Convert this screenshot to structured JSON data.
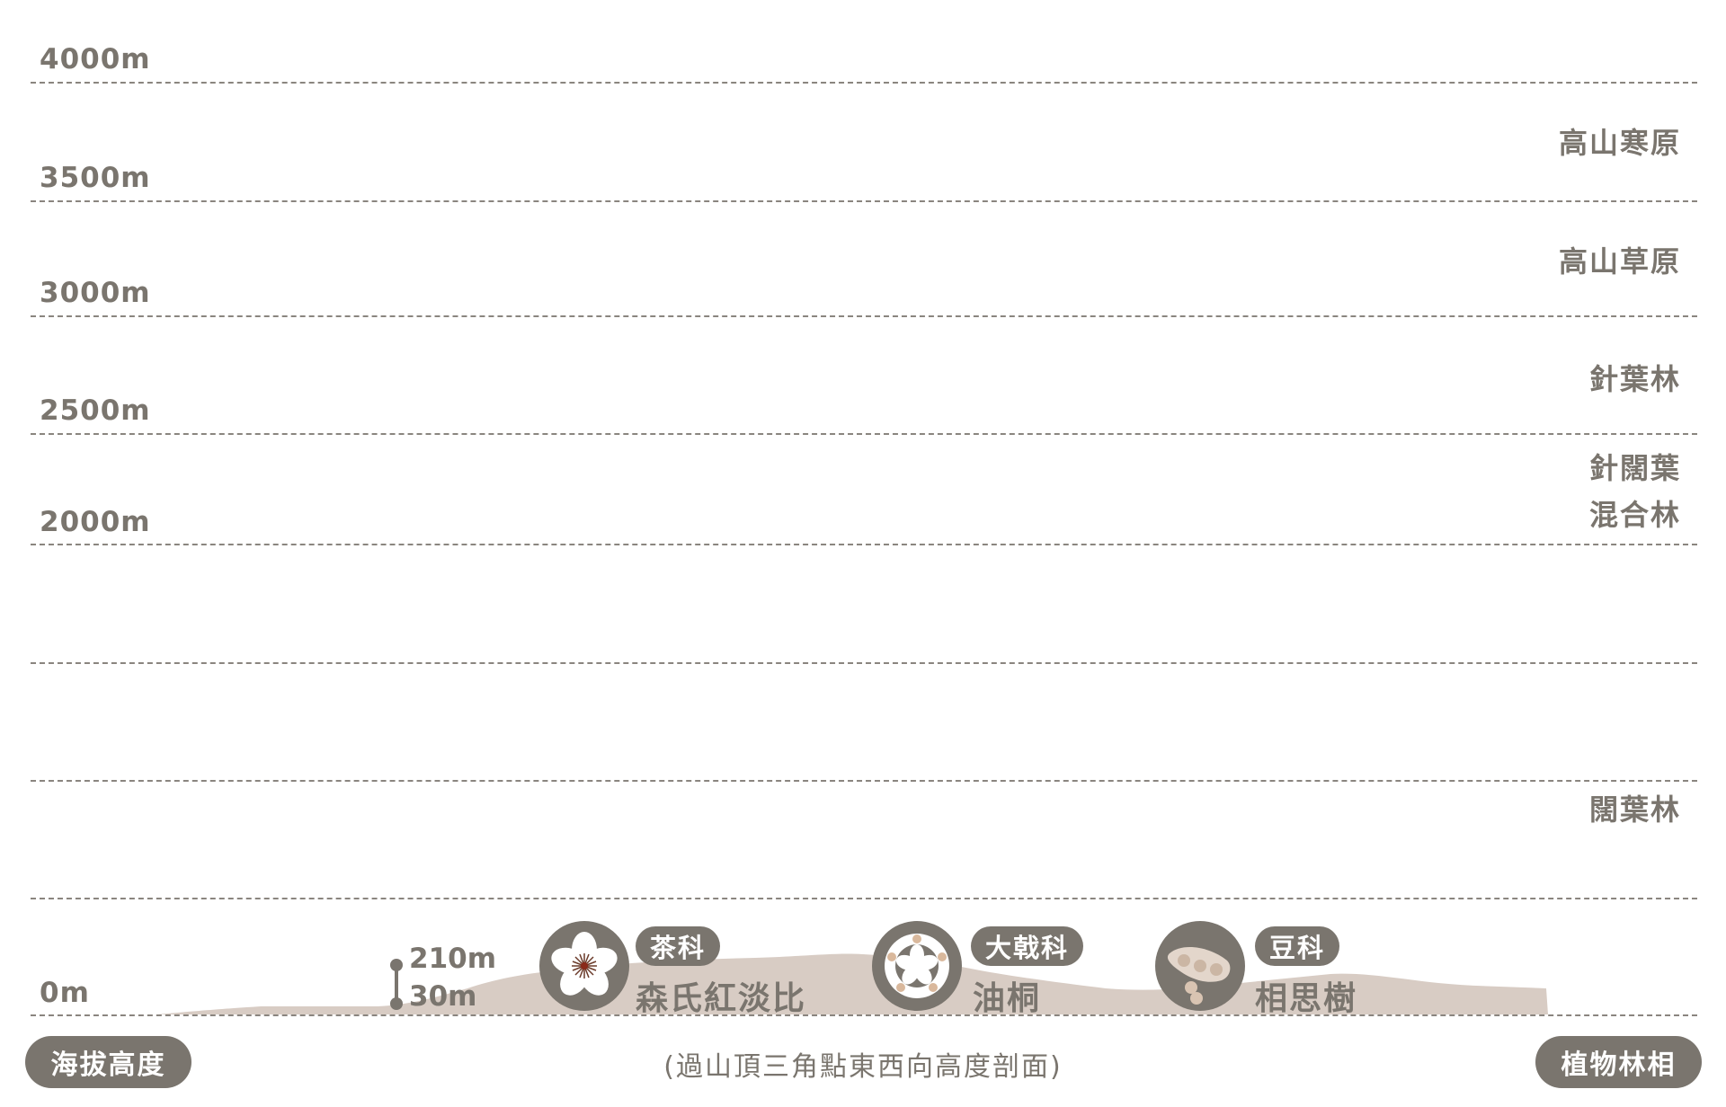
{
  "elevation_labels": {
    "e4000": "4000m",
    "e3500": "3500m",
    "e3000": "3000m",
    "e2500": "2500m",
    "e2000": "2000m",
    "e0": "0m"
  },
  "zones": {
    "alpine_tundra": "高山寒原",
    "alpine_grassland": "高山草原",
    "conifer": "針葉林",
    "mixed_line1": "針闊葉",
    "mixed_line2": "混合林",
    "broadleaf": "闊葉林"
  },
  "axis_pills": {
    "left": "海拔高度",
    "right": "植物林相"
  },
  "caption": "(過山頂三角點東西向高度剖面)",
  "range": {
    "top": "210m",
    "bottom": "30m"
  },
  "plants": [
    {
      "family": "茶科",
      "name": "森氏紅淡比",
      "icon": "flower-icon"
    },
    {
      "family": "大戟科",
      "name": "油桐",
      "icon": "tung-flower-icon"
    },
    {
      "family": "豆科",
      "name": "相思樹",
      "icon": "bean-pod-icon"
    }
  ],
  "colors": {
    "text": "#7a756e",
    "terrain": "#d8ccc4",
    "icon_bg": "#7a756e"
  }
}
